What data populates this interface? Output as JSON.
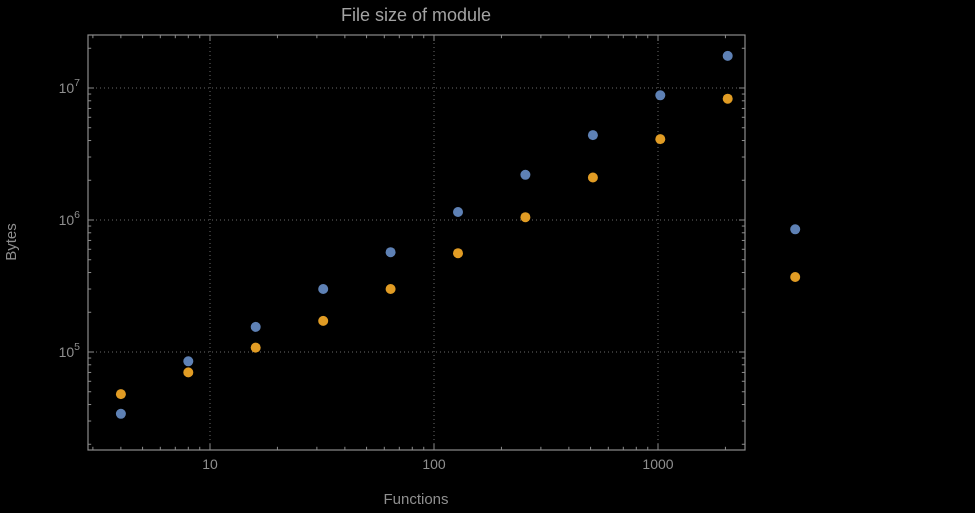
{
  "chart_data": {
    "type": "scatter",
    "title": "File size of module",
    "xlabel": "Functions",
    "ylabel": "Bytes",
    "x_scale": "log",
    "y_scale": "log",
    "xlim": [
      2.9,
      2450
    ],
    "ylim": [
      18000,
      25000000
    ],
    "grid": "dotted major gridlines on",
    "legend": "none",
    "x_ticks": [
      10,
      100,
      1000
    ],
    "x_tick_labels": [
      "10",
      "100",
      "1000"
    ],
    "y_ticks": [
      100000,
      1000000,
      10000000
    ],
    "y_tick_base": "10",
    "y_tick_exponents": [
      "5",
      "6",
      "7"
    ],
    "x": [
      4,
      8,
      16,
      32,
      64,
      128,
      256,
      512,
      1024,
      2048,
      4096
    ],
    "series": [
      {
        "name": "series-blue",
        "color": "#5E81B5",
        "values": [
          34000,
          85000,
          155000,
          300000,
          570000,
          1150000,
          2200000,
          4400000,
          8800000,
          17500000,
          850000
        ]
      },
      {
        "name": "series-orange",
        "color": "#E19C24",
        "values": [
          48000,
          70000,
          108000,
          172000,
          300000,
          560000,
          1050000,
          2100000,
          4100000,
          8300000,
          370000
        ]
      }
    ]
  },
  "colors": {
    "background": "#000000",
    "text": "#9a9a9a",
    "frame": "#8c8c8c",
    "grid": "#6a6a6a",
    "series_blue": "#5E81B5",
    "series_orange": "#E19C24"
  }
}
